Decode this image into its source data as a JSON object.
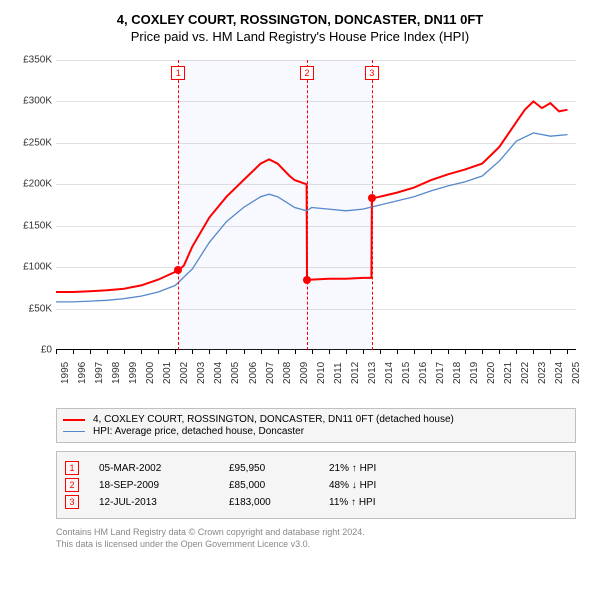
{
  "title_line1": "4, COXLEY COURT, ROSSINGTON, DONCASTER, DN11 0FT",
  "title_line2": "Price paid vs. HM Land Registry's House Price Index (HPI)",
  "chart": {
    "type": "line",
    "background_color": "#ffffff",
    "grid_color": "#e0e0e0",
    "axis_color": "#000000",
    "x_range": [
      1995,
      2025.5
    ],
    "y_range": [
      0,
      350000
    ],
    "y_ticks": [
      0,
      50000,
      100000,
      150000,
      200000,
      250000,
      300000,
      350000
    ],
    "y_tick_labels": [
      "£0",
      "£50K",
      "£100K",
      "£150K",
      "£200K",
      "£250K",
      "£300K",
      "£350K"
    ],
    "x_ticks": [
      1995,
      1996,
      1997,
      1998,
      1999,
      2000,
      2001,
      2002,
      2003,
      2004,
      2005,
      2006,
      2007,
      2008,
      2009,
      2010,
      2011,
      2012,
      2013,
      2014,
      2015,
      2016,
      2017,
      2018,
      2019,
      2020,
      2021,
      2022,
      2023,
      2024,
      2025
    ],
    "vertical_markers": [
      {
        "n": "1",
        "year": 2002.17
      },
      {
        "n": "2",
        "year": 2009.72
      },
      {
        "n": "3",
        "year": 2013.53
      }
    ],
    "series": [
      {
        "id": "price_paid",
        "label": "4, COXLEY COURT, ROSSINGTON, DONCASTER, DN11 0FT (detached house)",
        "color": "#ff0000",
        "width": 2,
        "data": [
          [
            1995,
            70000
          ],
          [
            1996,
            70000
          ],
          [
            1997,
            71000
          ],
          [
            1998,
            72000
          ],
          [
            1999,
            74000
          ],
          [
            2000,
            78000
          ],
          [
            2001,
            85000
          ],
          [
            2002.17,
            95950
          ],
          [
            2002.5,
            102000
          ],
          [
            2003,
            125000
          ],
          [
            2004,
            160000
          ],
          [
            2005,
            185000
          ],
          [
            2006,
            205000
          ],
          [
            2007,
            225000
          ],
          [
            2007.5,
            230000
          ],
          [
            2008,
            225000
          ],
          [
            2008.7,
            210000
          ],
          [
            2009,
            205000
          ],
          [
            2009.7,
            200000
          ],
          [
            2009.72,
            85000
          ],
          [
            2010,
            85000
          ],
          [
            2011,
            86000
          ],
          [
            2012,
            86000
          ],
          [
            2013,
            87000
          ],
          [
            2013.5,
            87000
          ],
          [
            2013.53,
            183000
          ],
          [
            2014,
            185000
          ],
          [
            2015,
            190000
          ],
          [
            2016,
            196000
          ],
          [
            2017,
            205000
          ],
          [
            2018,
            212000
          ],
          [
            2019,
            218000
          ],
          [
            2020,
            225000
          ],
          [
            2021,
            245000
          ],
          [
            2022,
            275000
          ],
          [
            2022.5,
            290000
          ],
          [
            2023,
            300000
          ],
          [
            2023.5,
            292000
          ],
          [
            2024,
            298000
          ],
          [
            2024.5,
            288000
          ],
          [
            2025,
            290000
          ]
        ]
      },
      {
        "id": "hpi",
        "label": "HPI: Average price, detached house, Doncaster",
        "color": "#5588cc",
        "width": 1.3,
        "data": [
          [
            1995,
            58000
          ],
          [
            1996,
            58000
          ],
          [
            1997,
            59000
          ],
          [
            1998,
            60000
          ],
          [
            1999,
            62000
          ],
          [
            2000,
            65000
          ],
          [
            2001,
            70000
          ],
          [
            2002,
            78000
          ],
          [
            2003,
            98000
          ],
          [
            2004,
            130000
          ],
          [
            2005,
            155000
          ],
          [
            2006,
            172000
          ],
          [
            2007,
            185000
          ],
          [
            2007.5,
            188000
          ],
          [
            2008,
            185000
          ],
          [
            2009,
            172000
          ],
          [
            2009.7,
            168000
          ],
          [
            2010,
            172000
          ],
          [
            2011,
            170000
          ],
          [
            2012,
            168000
          ],
          [
            2013,
            170000
          ],
          [
            2014,
            175000
          ],
          [
            2015,
            180000
          ],
          [
            2016,
            185000
          ],
          [
            2017,
            192000
          ],
          [
            2018,
            198000
          ],
          [
            2019,
            203000
          ],
          [
            2020,
            210000
          ],
          [
            2021,
            228000
          ],
          [
            2022,
            252000
          ],
          [
            2023,
            262000
          ],
          [
            2024,
            258000
          ],
          [
            2025,
            260000
          ]
        ]
      }
    ],
    "sale_points": [
      {
        "year": 2002.17,
        "price": 95950
      },
      {
        "year": 2009.72,
        "price": 85000
      },
      {
        "year": 2013.53,
        "price": 183000
      }
    ],
    "shaded_regions": [
      {
        "from": 2002.17,
        "to": 2009.72
      },
      {
        "from": 2009.72,
        "to": 2013.53
      }
    ]
  },
  "legend": [
    {
      "color": "#ff0000",
      "width": 2,
      "text": "4, COXLEY COURT, ROSSINGTON, DONCASTER, DN11 0FT (detached house)"
    },
    {
      "color": "#5588cc",
      "width": 1.3,
      "text": "HPI: Average price, detached house, Doncaster"
    }
  ],
  "sales": [
    {
      "n": "1",
      "date": "05-MAR-2002",
      "price": "£95,950",
      "change": "21% ↑ HPI"
    },
    {
      "n": "2",
      "date": "18-SEP-2009",
      "price": "£85,000",
      "change": "48% ↓ HPI"
    },
    {
      "n": "3",
      "date": "12-JUL-2013",
      "price": "£183,000",
      "change": "11% ↑ HPI"
    }
  ],
  "footer_line1": "Contains HM Land Registry data © Crown copyright and database right 2024.",
  "footer_line2": "This data is licensed under the Open Government Licence v3.0."
}
